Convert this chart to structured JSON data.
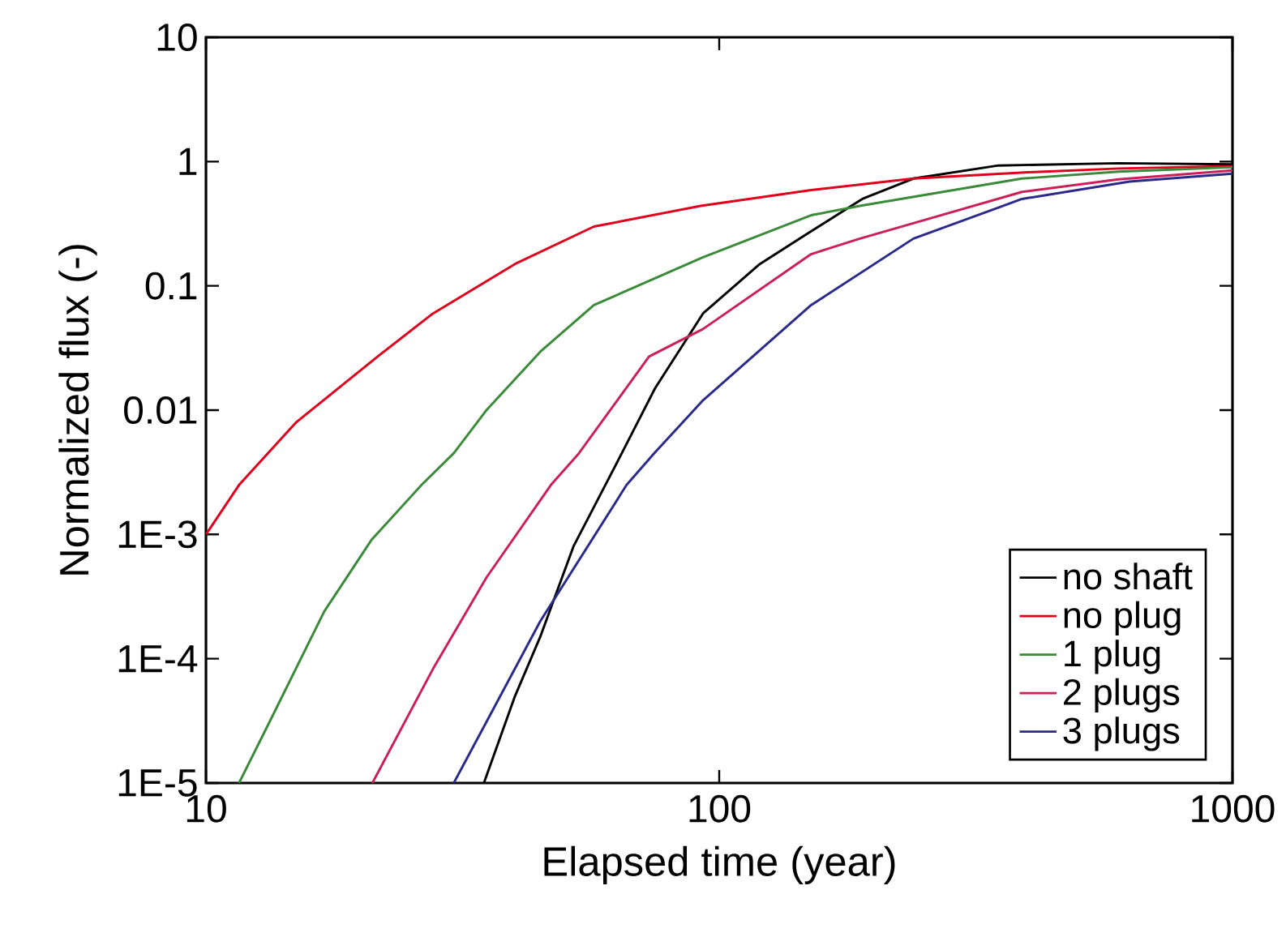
{
  "chart_data": {
    "type": "line",
    "xlabel": "Elapsed time (year)",
    "ylabel": "Normalized flux (-)",
    "log": "xy",
    "xlim": [
      10,
      1000
    ],
    "ylim": [
      1e-05,
      10
    ],
    "xticks": [
      10,
      100,
      1000
    ],
    "yticks": [
      {
        "value": 1e-05,
        "label": "1E-5"
      },
      {
        "value": 0.0001,
        "label": "1E-4"
      },
      {
        "value": 0.001,
        "label": "1E-3"
      },
      0.01,
      0.1,
      1,
      10
    ],
    "grid": false,
    "legend": "bottom right",
    "line_style": "solid",
    "marker": "none",
    "series": [
      {
        "name": "no shaft",
        "color": "#000000",
        "x": [
          34.8,
          40,
          44.8,
          52,
          60,
          64.6,
          75,
          93,
          120,
          150,
          190,
          239,
          350,
          600,
          1000
        ],
        "values": [
          1e-05,
          5e-05,
          0.00015,
          0.0008,
          0.0025,
          0.0045,
          0.015,
          0.06,
          0.15,
          0.27,
          0.5,
          0.73,
          0.93,
          0.97,
          0.95
        ]
      },
      {
        "name": "no plug",
        "color": "#e0001b",
        "x": [
          10,
          11.6,
          15,
          21.6,
          27.7,
          40,
          57,
          92,
          151,
          239,
          400,
          600,
          1000
        ],
        "values": [
          0.001,
          0.0025,
          0.008,
          0.027,
          0.06,
          0.15,
          0.3,
          0.44,
          0.59,
          0.73,
          0.82,
          0.88,
          0.92
        ]
      },
      {
        "name": "1 plug",
        "color": "#3a8a3a",
        "x": [
          11.6,
          13.4,
          17,
          21,
          26.3,
          30.4,
          35.2,
          45,
          57,
          93,
          151,
          188,
          389,
          600,
          1000
        ],
        "values": [
          1e-05,
          3.3e-05,
          0.00024,
          0.0009,
          0.0025,
          0.0045,
          0.01,
          0.03,
          0.07,
          0.17,
          0.37,
          0.44,
          0.73,
          0.83,
          0.9
        ]
      },
      {
        "name": "2 plugs",
        "color": "#cc1f5a",
        "x": [
          21.1,
          27.7,
          35.2,
          47,
          53.3,
          73,
          93,
          151,
          188,
          389,
          600,
          1000
        ],
        "values": [
          1e-05,
          8.3e-05,
          0.00045,
          0.0025,
          0.0045,
          0.027,
          0.045,
          0.18,
          0.24,
          0.57,
          0.72,
          0.85
        ]
      },
      {
        "name": "3 plugs",
        "color": "#2a2a8a",
        "x": [
          30.4,
          44.8,
          66,
          74.7,
          93,
          151,
          239,
          389,
          630,
          1000
        ],
        "values": [
          1e-05,
          0.0002,
          0.0025,
          0.0045,
          0.012,
          0.07,
          0.24,
          0.5,
          0.69,
          0.8
        ]
      }
    ]
  }
}
